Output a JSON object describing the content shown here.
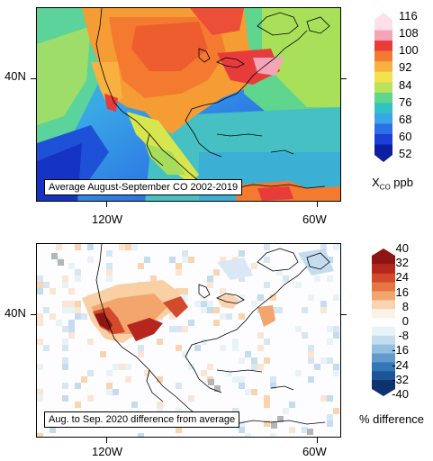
{
  "top_panel": {
    "caption": "Average August-September CO 2002-2019",
    "lat_label": "40N",
    "lon_labels": [
      "120W",
      "60W"
    ],
    "colorbar": {
      "ticks": [
        "116",
        "108",
        "100",
        "92",
        "84",
        "76",
        "68",
        "60",
        "52"
      ],
      "title_main": "X",
      "title_sub": "CO",
      "title_unit": "ppb",
      "colors": [
        "#fde0ea",
        "#f6a4b7",
        "#ea3b3b",
        "#f47a2f",
        "#f8b140",
        "#f4e24d",
        "#b8e35b",
        "#5fd58d",
        "#33c2c4",
        "#3aa5e7",
        "#2c70e6",
        "#1a3fd6",
        "#0b1fa0"
      ]
    }
  },
  "bottom_panel": {
    "caption": "Aug. to Sep. 2020 difference from average",
    "lat_label": "40N",
    "lon_labels": [
      "120W",
      "60W"
    ],
    "colorbar": {
      "ticks": [
        "40",
        "32",
        "24",
        "16",
        "8",
        "0",
        "-8",
        "-16",
        "-24",
        "-32",
        "-40"
      ],
      "title": "% difference",
      "colors": [
        "#8e1512",
        "#b5261c",
        "#d2492b",
        "#e47744",
        "#f2a66e",
        "#f9d4b0",
        "#fdf2e6",
        "#ffffff",
        "#e8f2f9",
        "#c4dcee",
        "#93bfe0",
        "#5f9ccc",
        "#3477b6",
        "#1c5597",
        "#0e3170"
      ]
    }
  }
}
